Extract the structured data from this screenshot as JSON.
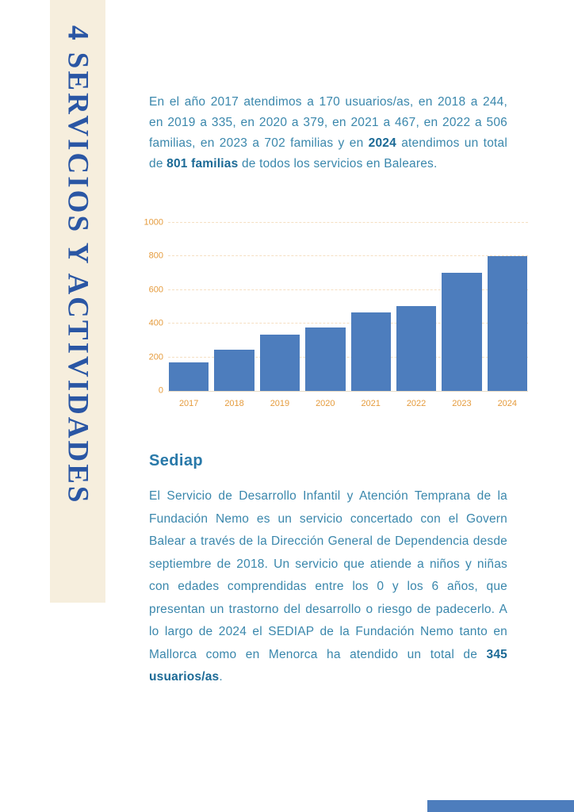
{
  "sidebar": {
    "title": "4 SERVICIOS Y ACTIVIDADES",
    "background": "#f6eedd",
    "title_color": "#2a56a4"
  },
  "intro": {
    "segments": [
      {
        "text": "En el año 2017 atendimos a 170 usuarios/as, en 2018 a 244, en 2019 a 335, en 2020 a 379, en 2021 a 467, en 2022 a 506 familias, en 2023 a 702 familias y en ",
        "bold": false
      },
      {
        "text": "2024",
        "bold": true
      },
      {
        "text": " atendimos un total de ",
        "bold": false
      },
      {
        "text": "801 familias",
        "bold": true
      },
      {
        "text": " de todos los servicios en Baleares.",
        "bold": false
      }
    ]
  },
  "chart_data": {
    "type": "bar",
    "categories": [
      "2017",
      "2018",
      "2019",
      "2020",
      "2021",
      "2022",
      "2023",
      "2024"
    ],
    "values": [
      170,
      244,
      335,
      379,
      467,
      506,
      702,
      801
    ],
    "title": "",
    "xlabel": "",
    "ylabel": "",
    "ylim": [
      0,
      1000
    ],
    "yticks": [
      0,
      200,
      400,
      600,
      800,
      1000
    ],
    "grid": true,
    "legend": "none",
    "bar_color": "#4d7dbd",
    "axis_label_color": "#e59b3c"
  },
  "sediap": {
    "heading": "Sediap",
    "segments": [
      {
        "text": "El Servicio de Desarrollo Infantil y Atención Temprana de la Fundación Nemo es un servicio concertado con el Govern Balear a través de la Dirección General de Dependencia desde septiembre de 2018. Un servicio que atiende a niños y niñas con edades comprendidas entre los 0 y los 6 años, que presentan un trastorno del desarrollo o riesgo de padecerlo. A lo largo de 2024 el SEDIAP de la Fundación Nemo tanto en Mallorca como en Menorca ha atendido un total de ",
        "bold": false
      },
      {
        "text": "345 usuarios/as",
        "bold": true
      },
      {
        "text": ".",
        "bold": false
      }
    ]
  },
  "footer": {
    "accent_color": "#4d7dbd"
  }
}
